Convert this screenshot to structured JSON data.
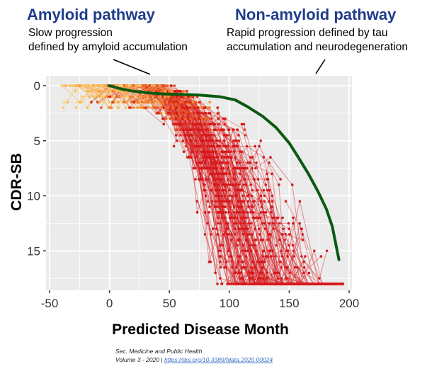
{
  "annotations": {
    "left": {
      "title": "Amyloid pathway",
      "line1": "Slow progression",
      "line2": "defined by amyloid accumulation"
    },
    "right": {
      "title": "Non-amyloid pathway",
      "line1": "Rapid progression defined by tau",
      "line2": "accumulation and neurodegeneration"
    }
  },
  "citation": {
    "section": "Sec. Medicine and Public Health",
    "volume": "Volume  3 - 2020 |",
    "doi_link": "https://doi.org/10.3389/fdata.2020.00024"
  },
  "colors": {
    "annotation_title": "#1f3d8c",
    "panel_bg": "#ebebeb",
    "grid": "#ffffff",
    "mean_curve": "#0b5a12",
    "point_low": "#fff59a",
    "point_mid": "#f48a2a",
    "point_high": "#d7191c"
  },
  "chart_data": {
    "type": "line",
    "title": "",
    "xlabel": "Predicted Disease Month",
    "ylabel": "CDR-SB",
    "xlim": [
      -52,
      203
    ],
    "ylim": [
      18.5,
      -1
    ],
    "y_reversed": true,
    "grid": true,
    "x_ticks": [
      -50,
      0,
      50,
      100,
      150,
      200
    ],
    "x_tick_labels": [
      "-50",
      "0",
      "50",
      "100",
      "150",
      "200"
    ],
    "y_ticks": [
      0,
      5,
      10,
      15
    ],
    "y_tick_labels": [
      "0",
      "5",
      "10",
      "15"
    ],
    "series": [
      {
        "name": "mean progression curve",
        "kind": "line",
        "x": [
          0,
          10,
          20,
          32,
          45,
          60,
          75,
          92,
          105,
          115,
          128,
          139,
          150,
          157,
          166,
          174,
          181,
          186,
          191.5
        ],
        "y": [
          0,
          0.3,
          0.5,
          0.65,
          0.75,
          0.8,
          0.85,
          1.0,
          1.3,
          1.9,
          2.8,
          3.8,
          5.2,
          6.4,
          8.0,
          9.6,
          11.2,
          12.8,
          15.8
        ]
      },
      {
        "name": "individual trajectories",
        "kind": "spaghetti",
        "description": "Many individual patient CDR-SB trajectories (points joined by lines), colored yellow (low) to red (high)",
        "x_range": [
          -40,
          190
        ],
        "y_range": [
          0,
          18
        ]
      }
    ],
    "legend": "none"
  }
}
